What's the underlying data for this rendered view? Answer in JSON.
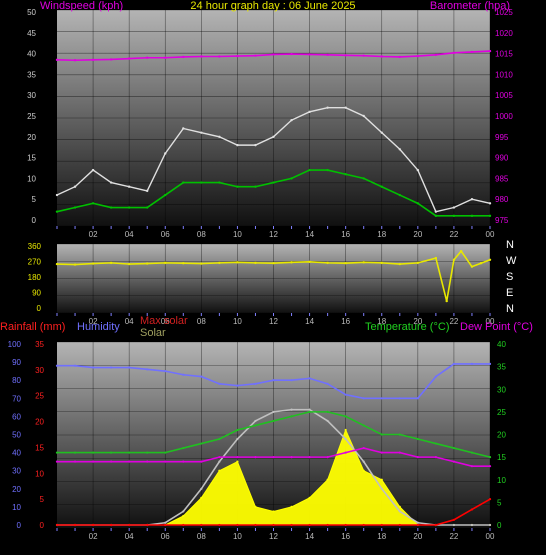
{
  "header": {
    "left_label": "Windspeed (kph)",
    "title": "24 hour graph day : 06 June 2025",
    "right_label": "Barometer (hpa)"
  },
  "colors": {
    "wind_gust": "#e0e0e0",
    "wind_avg": "#00c000",
    "wind_light": "#b8ffb8",
    "barometer": "#e000e0",
    "direction": "#e8e800",
    "rain": "#ff0000",
    "humidity": "#7070ff",
    "maxsolar": "#c0c0c0",
    "solar": "#ffff00",
    "temperature": "#20c020",
    "dewpoint": "#e000e0",
    "time_tick": "#8080ff"
  },
  "x_ticks": [
    "02",
    "04",
    "06",
    "08",
    "10",
    "12",
    "14",
    "16",
    "18",
    "20",
    "22",
    "00"
  ],
  "chart_data": [
    {
      "type": "line",
      "name": "wind-barometer",
      "x_hours": [
        0,
        1,
        2,
        3,
        4,
        5,
        6,
        7,
        8,
        9,
        10,
        11,
        12,
        13,
        14,
        15,
        16,
        17,
        18,
        19,
        20,
        21,
        22,
        23,
        24
      ],
      "left_axis": {
        "label": "Windspeed (kph)",
        "ticks": [
          0,
          5,
          10,
          15,
          20,
          25,
          30,
          35,
          40,
          45,
          50
        ],
        "range": [
          0,
          50
        ]
      },
      "right_axis": {
        "label": "Barometer (hpa)",
        "ticks": [
          975,
          980,
          985,
          990,
          995,
          1000,
          1005,
          1010,
          1015,
          1020,
          1025
        ],
        "range": [
          975,
          1025
        ]
      },
      "series": [
        {
          "name": "Wind gust",
          "axis": "left",
          "values": [
            6,
            8,
            12,
            9,
            8,
            7,
            16,
            22,
            21,
            20,
            18,
            18,
            20,
            24,
            26,
            27,
            27,
            25,
            21,
            17,
            12,
            2,
            3,
            5,
            4
          ]
        },
        {
          "name": "Wind average",
          "axis": "left",
          "values": [
            2,
            3,
            4,
            3,
            3,
            3,
            6,
            9,
            9,
            9,
            8,
            8,
            9,
            10,
            12,
            12,
            11,
            10,
            8,
            6,
            4,
            1,
            1,
            1,
            1
          ]
        },
        {
          "name": "Barometer",
          "axis": "right",
          "values": [
            1013.5,
            1013.4,
            1013.5,
            1013.6,
            1013.8,
            1014.0,
            1014.0,
            1014.2,
            1014.3,
            1014.3,
            1014.4,
            1014.5,
            1014.8,
            1014.9,
            1014.8,
            1014.7,
            1014.6,
            1014.5,
            1014.3,
            1014.2,
            1014.4,
            1014.7,
            1015.2,
            1015.4,
            1015.6
          ]
        }
      ]
    },
    {
      "type": "line",
      "name": "wind-direction",
      "side_labels": [
        "N",
        "W",
        "S",
        "E",
        "N"
      ],
      "axis": {
        "ticks": [
          0,
          90,
          180,
          270,
          360
        ],
        "range": [
          0,
          360
        ]
      },
      "x_hours": [
        0,
        1,
        2,
        3,
        4,
        5,
        6,
        7,
        8,
        9,
        10,
        11,
        12,
        13,
        14,
        15,
        16,
        17,
        18,
        19,
        20,
        21,
        21.6,
        22,
        22.4,
        23,
        23.5,
        24
      ],
      "values": [
        255,
        252,
        258,
        262,
        255,
        258,
        262,
        260,
        258,
        262,
        265,
        262,
        260,
        265,
        268,
        262,
        260,
        265,
        262,
        255,
        262,
        290,
        40,
        280,
        330,
        240,
        260,
        280
      ]
    },
    {
      "type": "line",
      "name": "weather",
      "labels": {
        "rainfall": "Rainfall (mm)",
        "humidity": "Humidity",
        "maxsolar": "Max solar",
        "solar": "Solar",
        "temperature": "Temperature (°C)",
        "dewpoint": "Dew Point (°C)"
      },
      "axes": {
        "humidity": {
          "ticks": [
            0,
            10,
            20,
            30,
            40,
            50,
            60,
            70,
            80,
            90,
            100
          ],
          "range": [
            0,
            100
          ]
        },
        "rain": {
          "ticks": [
            0,
            5,
            10,
            15,
            20,
            25,
            30,
            35
          ],
          "range": [
            0,
            35
          ]
        },
        "temperature": {
          "ticks": [
            0,
            5,
            10,
            15,
            20,
            25,
            30,
            35,
            40
          ],
          "range": [
            0,
            40
          ]
        }
      },
      "x_hours": [
        0,
        1,
        2,
        3,
        4,
        5,
        6,
        7,
        8,
        9,
        10,
        11,
        12,
        13,
        14,
        15,
        16,
        17,
        18,
        19,
        20,
        21,
        22,
        23,
        24
      ],
      "series": [
        {
          "name": "Humidity",
          "axis": "humidity",
          "values": [
            88,
            88,
            87,
            87,
            87,
            86,
            85,
            83,
            82,
            78,
            77,
            78,
            80,
            80,
            81,
            78,
            72,
            70,
            70,
            70,
            70,
            82,
            89,
            89,
            89
          ]
        },
        {
          "name": "Temperature",
          "axis": "temperature",
          "values": [
            16,
            16,
            16,
            16,
            16,
            16,
            16,
            17,
            18,
            19,
            21,
            22,
            23,
            24,
            25,
            25,
            24,
            22,
            20,
            20,
            19,
            18,
            17,
            16,
            15
          ]
        },
        {
          "name": "Dew Point",
          "axis": "temperature",
          "values": [
            14,
            14,
            14,
            14,
            14,
            14,
            14,
            14,
            14,
            15,
            15,
            15,
            15,
            15,
            15,
            15,
            16,
            17,
            16,
            16,
            15,
            15,
            14,
            13,
            13
          ]
        },
        {
          "name": "Max solar",
          "axis": "temperature",
          "values": [
            0,
            0,
            0,
            0,
            0,
            0,
            0.5,
            3,
            8,
            14,
            19,
            23,
            25,
            25.5,
            25.5,
            23,
            19,
            14,
            8,
            3,
            0.5,
            0,
            0,
            0,
            0
          ]
        },
        {
          "name": "Solar",
          "axis": "temperature",
          "values": [
            0,
            0,
            0,
            0,
            0,
            0,
            0,
            2,
            6,
            12,
            14,
            4,
            3,
            4,
            6,
            10,
            21,
            12,
            10,
            4,
            0,
            0,
            0,
            0,
            0
          ]
        },
        {
          "name": "Rainfall",
          "axis": "rain",
          "values": [
            0,
            0,
            0,
            0,
            0,
            0,
            0,
            0,
            0,
            0,
            0,
            0,
            0,
            0,
            0,
            0,
            0,
            0,
            0,
            0,
            0,
            0,
            1,
            3,
            5
          ]
        }
      ]
    }
  ]
}
